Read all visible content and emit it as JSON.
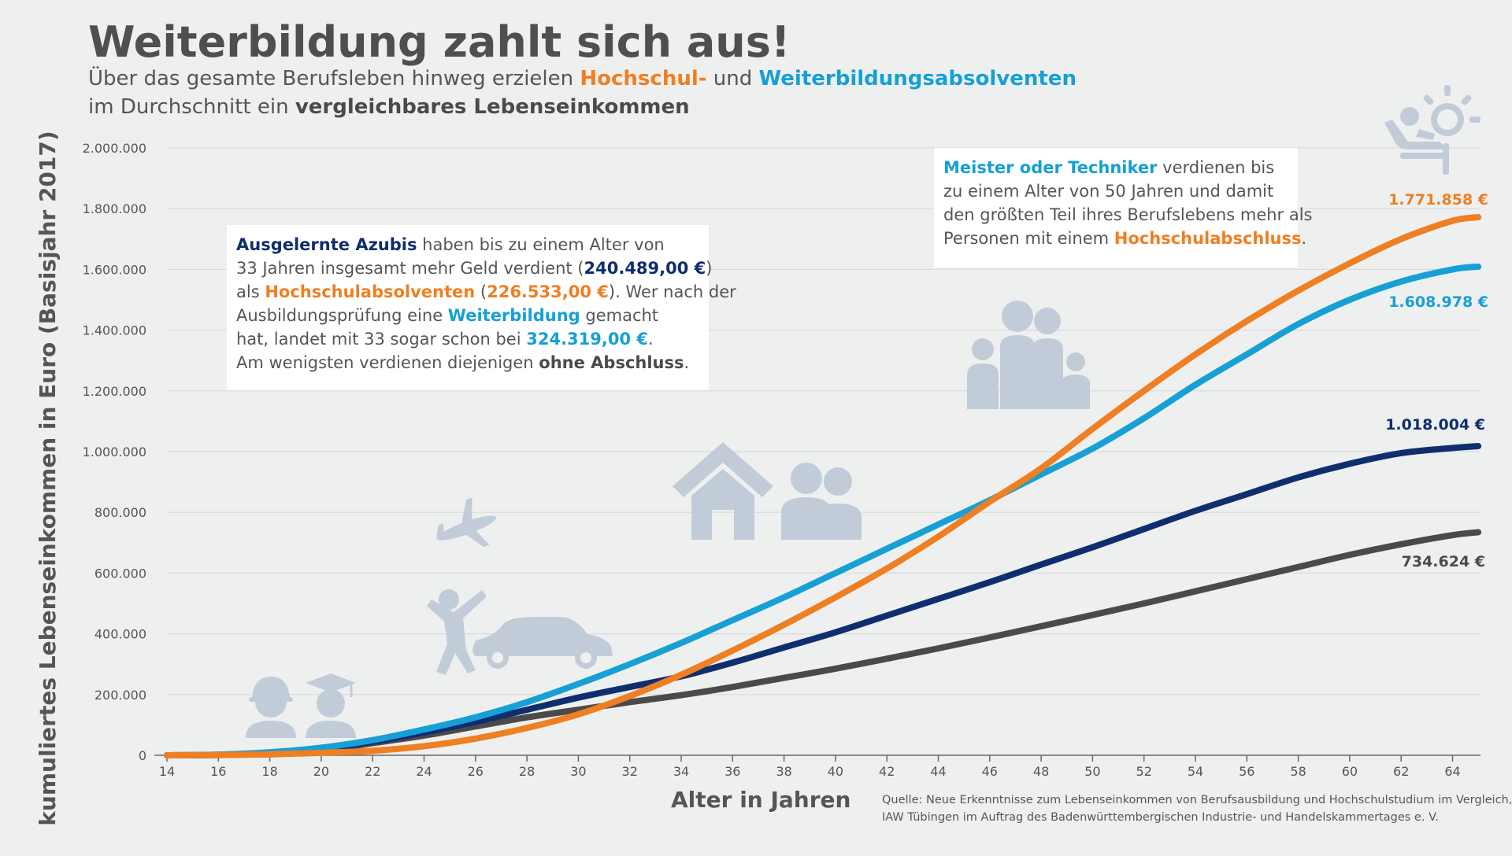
{
  "header": {
    "title": "Weiterbildung zahlt sich aus!",
    "sub_line1_a": "Über das gesamte Berufsleben hinweg erzielen ",
    "sub_line1_b": "Hochschul-",
    "sub_line1_c": " und ",
    "sub_line1_d": "Weiterbildungsabsolventen",
    "sub_line2_a": "im Durchschnitt ein ",
    "sub_line2_b": "vergleichbares Lebenseinkommen"
  },
  "box_azubis": {
    "l1_bold": "Ausgelernte Azubis",
    "l1_rest": " haben bis zu einem Alter von",
    "l2_a": "33 Jahren insgesamt mehr Geld verdient (",
    "l2_b": "240.489,00 €",
    "l2_c": ")",
    "l3_a": "als ",
    "l3_b": "Hochschulabsolventen",
    "l3_c": " (",
    "l3_d": "226.533,00 €",
    "l3_e": "). Wer nach der",
    "l4_a": "Ausbildungsprüfung eine ",
    "l4_b": "Weiterbildung",
    "l4_c": " gemacht",
    "l5_a": "hat, landet mit 33 sogar schon bei ",
    "l5_b": "324.319,00 €",
    "l5_c": ".",
    "l6_a": "Am wenigsten verdienen diejenigen ",
    "l6_b": "ohne Abschluss",
    "l6_c": "."
  },
  "box_meister": {
    "l1_bold": "Meister oder Techniker",
    "l1_rest": " verdienen bis",
    "l2": "zu einem Alter von 50 Jahren und damit",
    "l3": "den größten Teil ihres Berufslebens mehr als",
    "l4_a": "Personen mit einem ",
    "l4_b": "Hochschulabschluss",
    "l4_c": "."
  },
  "source": {
    "line1": "Quelle: Neue Erkenntnisse zum Lebenseinkommen von Berufsausbildung und Hochschulstudium im Vergleich,",
    "line2": "IAW Tübingen im Auftrag des Badenwürttembergischen Industrie- und Handelskammertages e. V."
  },
  "colors": {
    "hochschule": "#ee7f22",
    "weiterbildung": "#16a0d5",
    "ausbildung": "#0f2e6e",
    "ohne_abschluss": "#4a4a4a",
    "grid": "#d8dbda",
    "icon": "#c2ccd8"
  },
  "icons": [
    "construction-worker-icon",
    "graduate-icon",
    "airplane-icon",
    "jumping-person-icon",
    "car-icon",
    "house-icon",
    "couple-icon",
    "family-icon",
    "retiree-lounger-icon"
  ],
  "chart_data": {
    "type": "line",
    "xlabel": "Alter in Jahren",
    "ylabel": "kumuliertes Lebenseinkommen in Euro (Basisjahr 2017)",
    "xlim": [
      14,
      65
    ],
    "ylim": [
      0,
      2000000
    ],
    "x_ticks": [
      14,
      16,
      18,
      20,
      22,
      24,
      26,
      28,
      30,
      32,
      34,
      36,
      38,
      40,
      42,
      44,
      46,
      48,
      50,
      52,
      54,
      56,
      58,
      60,
      62,
      64
    ],
    "y_ticks": [
      0,
      200000,
      400000,
      600000,
      800000,
      1000000,
      1200000,
      1400000,
      1600000,
      1800000,
      2000000
    ],
    "y_tick_labels": [
      "0",
      "200.000",
      "400.000",
      "600.000",
      "800.000",
      "1.000.000",
      "1.200.000",
      "1.400.000",
      "1.600.000",
      "1.800.000",
      "2.000.000"
    ],
    "grid": "horizontal",
    "x": [
      14,
      16,
      18,
      20,
      22,
      24,
      26,
      28,
      30,
      32,
      34,
      36,
      38,
      40,
      42,
      44,
      46,
      48,
      50,
      52,
      54,
      56,
      58,
      60,
      62,
      64,
      65
    ],
    "series": [
      {
        "key": "ohne_abschluss",
        "values": [
          0,
          1000,
          5000,
          15000,
          40000,
          65000,
          95000,
          125000,
          150000,
          175000,
          198000,
          225000,
          255000,
          285000,
          318000,
          352000,
          388000,
          425000,
          462000,
          500000,
          540000,
          580000,
          620000,
          660000,
          695000,
          725000,
          734624
        ],
        "end_label": "734.624 €"
      },
      {
        "key": "ausbildung",
        "values": [
          0,
          2000,
          8000,
          20000,
          45000,
          75000,
          110000,
          150000,
          190000,
          225000,
          260000,
          305000,
          355000,
          405000,
          460000,
          515000,
          570000,
          628000,
          685000,
          745000,
          805000,
          860000,
          915000,
          960000,
          995000,
          1012000,
          1018004
        ],
        "end_label": "1.018.004 €"
      },
      {
        "key": "weiterbildung",
        "values": [
          0,
          2000,
          10000,
          25000,
          50000,
          85000,
          125000,
          175000,
          235000,
          300000,
          370000,
          445000,
          520000,
          600000,
          680000,
          760000,
          840000,
          925000,
          1010000,
          1110000,
          1220000,
          1320000,
          1420000,
          1500000,
          1560000,
          1600000,
          1608978
        ],
        "end_label": "1.608.978 €"
      },
      {
        "key": "hochschule",
        "values": [
          0,
          1000,
          3000,
          8000,
          15000,
          30000,
          55000,
          90000,
          135000,
          195000,
          265000,
          345000,
          430000,
          520000,
          615000,
          720000,
          835000,
          945000,
          1075000,
          1200000,
          1320000,
          1430000,
          1530000,
          1620000,
          1700000,
          1760000,
          1771858
        ],
        "end_label": "1.771.858 €"
      }
    ]
  }
}
